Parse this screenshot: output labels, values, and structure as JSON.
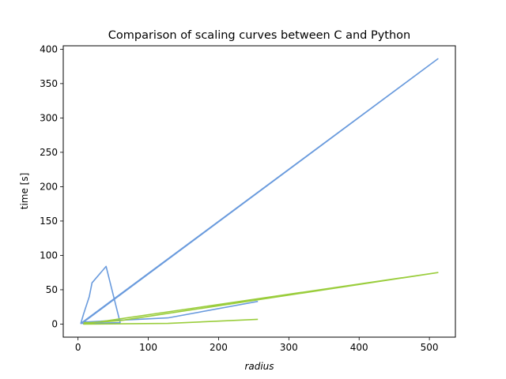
{
  "chart_data": {
    "type": "line",
    "title": "Comparison of scaling curves between C and Python",
    "xlabel": "radius",
    "ylabel": "time [s]",
    "xlim": [
      -21,
      537
    ],
    "ylim": [
      -19,
      405
    ],
    "xticks": [
      0,
      100,
      200,
      300,
      400,
      500
    ],
    "yticks": [
      0,
      50,
      100,
      150,
      200,
      250,
      300,
      350,
      400
    ],
    "grid": false,
    "legend": "none",
    "series": [
      {
        "color": "#6a9bdd",
        "x": [
          4,
          8,
          16,
          20,
          40,
          60,
          4,
          512,
          8,
          128,
          256
        ],
        "y": [
          1,
          15,
          40,
          60,
          84,
          2,
          1,
          386,
          3,
          9,
          33
        ]
      },
      {
        "color": "#9acd3c",
        "x": [
          8,
          16,
          60,
          512,
          8,
          128,
          256
        ],
        "y": [
          2,
          2,
          5,
          75,
          0,
          1,
          7
        ]
      }
    ]
  }
}
